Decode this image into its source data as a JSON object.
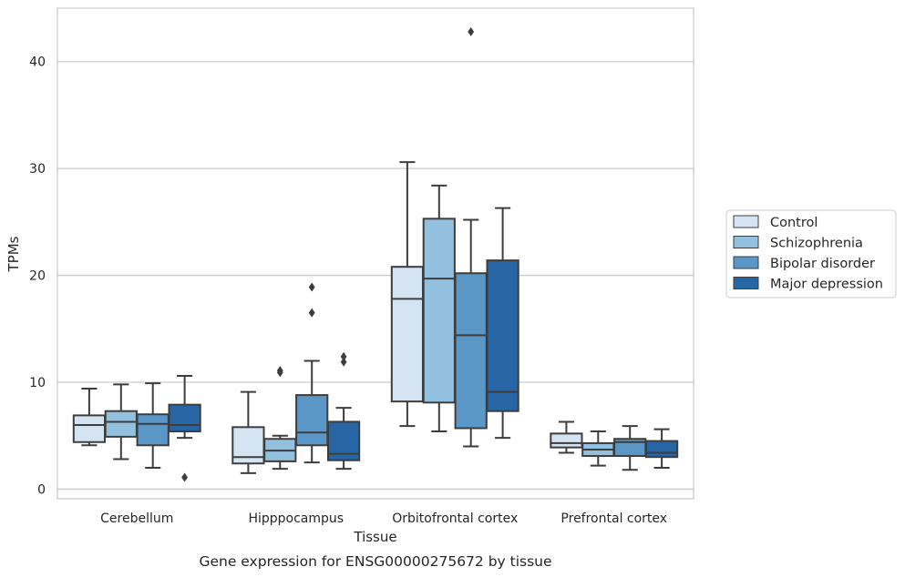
{
  "chart_data": {
    "type": "box",
    "caption": "Gene expression for ENSG00000275672 by tissue",
    "xlabel": "Tissue",
    "ylabel": "TPMs",
    "ylim": [
      -0.9,
      45
    ],
    "yticks": [
      0,
      10,
      20,
      30,
      40
    ],
    "grid": "horizontal",
    "legend_position": "right",
    "categories": [
      "Cerebellum",
      "Hipppocampus",
      "Orbitofrontal cortex",
      "Prefrontal cortex"
    ],
    "series": [
      {
        "name": "Control",
        "color": "#d4e4f2",
        "boxes": [
          {
            "whisker_low": 4.1,
            "q1": 4.4,
            "median": 6.0,
            "q3": 6.9,
            "whisker_high": 9.4,
            "outliers": []
          },
          {
            "whisker_low": 1.5,
            "q1": 2.4,
            "median": 3.0,
            "q3": 5.8,
            "whisker_high": 9.1,
            "outliers": []
          },
          {
            "whisker_low": 5.9,
            "q1": 8.2,
            "median": 17.8,
            "q3": 20.8,
            "whisker_high": 30.6,
            "outliers": []
          },
          {
            "whisker_low": 3.4,
            "q1": 3.9,
            "median": 4.3,
            "q3": 5.2,
            "whisker_high": 6.3,
            "outliers": []
          }
        ]
      },
      {
        "name": "Schizophrenia",
        "color": "#93c0de",
        "boxes": [
          {
            "whisker_low": 2.8,
            "q1": 4.9,
            "median": 6.3,
            "q3": 7.3,
            "whisker_high": 9.8,
            "outliers": []
          },
          {
            "whisker_low": 1.9,
            "q1": 2.6,
            "median": 3.6,
            "q3": 4.7,
            "whisker_high": 5.0,
            "outliers": [
              10.9,
              11.1
            ]
          },
          {
            "whisker_low": 5.4,
            "q1": 8.1,
            "median": 19.7,
            "q3": 25.3,
            "whisker_high": 28.4,
            "outliers": []
          },
          {
            "whisker_low": 2.2,
            "q1": 3.1,
            "median": 3.7,
            "q3": 4.3,
            "whisker_high": 5.4,
            "outliers": []
          }
        ]
      },
      {
        "name": "Bipolar disorder",
        "color": "#5a97c6",
        "boxes": [
          {
            "whisker_low": 2.0,
            "q1": 4.1,
            "median": 6.1,
            "q3": 7.0,
            "whisker_high": 9.9,
            "outliers": []
          },
          {
            "whisker_low": 2.5,
            "q1": 4.1,
            "median": 5.3,
            "q3": 8.8,
            "whisker_high": 12.0,
            "outliers": [
              16.5,
              18.9
            ]
          },
          {
            "whisker_low": 4.0,
            "q1": 5.7,
            "median": 14.4,
            "q3": 20.2,
            "whisker_high": 25.2,
            "outliers": [
              42.8
            ]
          },
          {
            "whisker_low": 1.8,
            "q1": 3.1,
            "median": 4.4,
            "q3": 4.7,
            "whisker_high": 5.9,
            "outliers": []
          }
        ]
      },
      {
        "name": "Major depression",
        "color": "#2865a5",
        "boxes": [
          {
            "whisker_low": 4.8,
            "q1": 5.4,
            "median": 6.0,
            "q3": 7.9,
            "whisker_high": 10.6,
            "outliers": [
              1.1
            ]
          },
          {
            "whisker_low": 1.9,
            "q1": 2.7,
            "median": 3.3,
            "q3": 6.3,
            "whisker_high": 7.6,
            "outliers": [
              11.9,
              12.4
            ]
          },
          {
            "whisker_low": 4.8,
            "q1": 7.3,
            "median": 9.1,
            "q3": 21.4,
            "whisker_high": 26.3,
            "outliers": []
          },
          {
            "whisker_low": 2.0,
            "q1": 3.0,
            "median": 3.4,
            "q3": 4.5,
            "whisker_high": 5.6,
            "outliers": []
          }
        ]
      }
    ]
  }
}
